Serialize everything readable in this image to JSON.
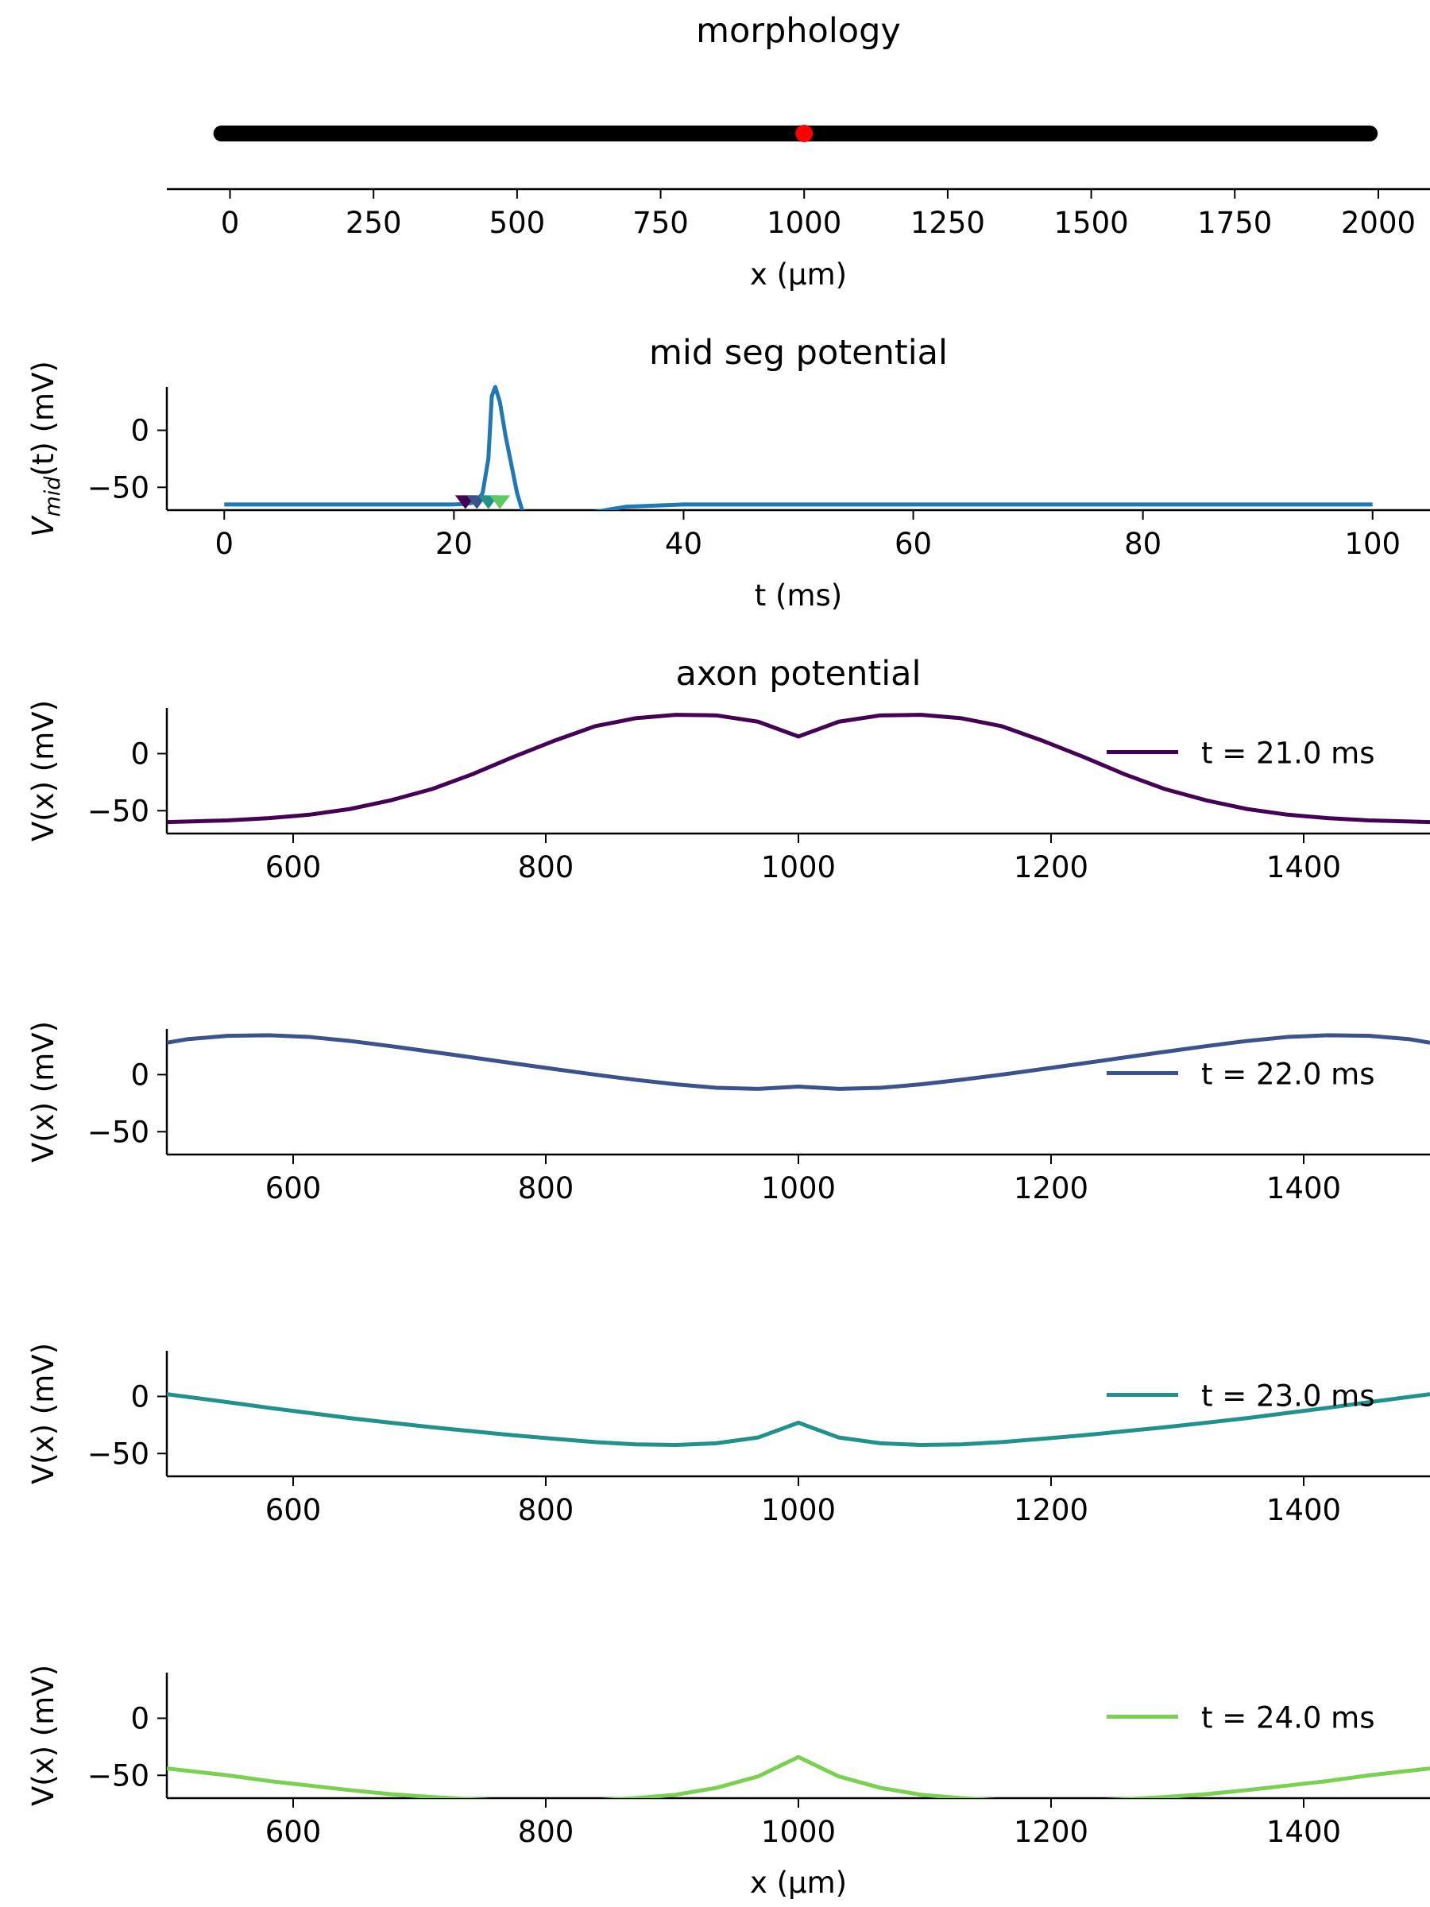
{
  "chart_data": [
    {
      "id": "morph",
      "type": "line",
      "title": "morphology",
      "xlabel": "x (μm)",
      "ylabel": "",
      "xlim": [
        -110,
        2090
      ],
      "xticks": [
        0,
        250,
        500,
        750,
        1000,
        1250,
        1500,
        1750,
        2000
      ],
      "segment": {
        "x_start": -15,
        "x_end": 1985,
        "color": "#000000"
      },
      "marker": {
        "x": 1000,
        "color": "#ff0000"
      }
    },
    {
      "id": "mid",
      "type": "line",
      "title": "mid seg potential",
      "xlabel": "t (ms)",
      "ylabel_main": "V",
      "ylabel_sub": "mid",
      "ylabel_rest": "(t) (mV)",
      "xlim": [
        -5,
        105
      ],
      "ylim": [
        -70,
        38
      ],
      "xticks": [
        0,
        20,
        40,
        60,
        80,
        100
      ],
      "yticks": [
        0,
        -50
      ],
      "series": [
        {
          "color": "#1f77b4",
          "x": [
            0,
            5,
            10,
            15,
            20,
            21,
            22,
            22.5,
            23,
            23.3,
            23.6,
            24,
            24.5,
            25,
            25.5,
            26,
            30,
            32,
            35,
            40,
            50,
            60,
            70,
            80,
            90,
            100
          ],
          "y": [
            -65,
            -65,
            -65,
            -65,
            -65,
            -64.5,
            -63,
            -55,
            -25,
            30,
            38,
            25,
            -5,
            -30,
            -55,
            -72,
            -74,
            -72,
            -67,
            -65,
            -65,
            -65,
            -65,
            -65,
            -65,
            -65
          ]
        }
      ],
      "markers": [
        {
          "t": 21.0,
          "color": "#440154"
        },
        {
          "t": 22.0,
          "color": "#3b528b"
        },
        {
          "t": 23.0,
          "color": "#21918c"
        },
        {
          "t": 24.0,
          "color": "#5ec962"
        }
      ]
    },
    {
      "id": "ax1",
      "type": "line",
      "title": "axon potential",
      "xlabel": "",
      "ylabel": "V(x) (mV)",
      "xlim": [
        500,
        1500
      ],
      "ylim": [
        -70,
        40
      ],
      "xticks": [
        600,
        800,
        1000,
        1200,
        1400
      ],
      "yticks": [
        0,
        -50
      ],
      "series": [
        {
          "name": "t = 21.0 ms",
          "color": "#440154",
          "x": [
            500,
            548,
            581,
            613,
            645,
            677,
            710,
            742,
            774,
            806,
            839,
            871,
            903,
            935,
            968,
            1000,
            1032,
            1065,
            1097,
            1129,
            1161,
            1194,
            1226,
            1258,
            1290,
            1323,
            1355,
            1387,
            1419,
            1452,
            1500
          ],
          "y": [
            -60,
            -58.5,
            -56.5,
            -53.5,
            -48.5,
            -41,
            -31,
            -18,
            -3,
            11,
            24,
            31,
            34,
            33.5,
            28,
            15,
            28,
            33.5,
            34,
            31,
            24,
            11,
            -3,
            -18,
            -31,
            -41,
            -48.5,
            -53.5,
            -56.5,
            -58.5,
            -60
          ]
        }
      ]
    },
    {
      "id": "ax2",
      "type": "line",
      "title": "",
      "xlabel": "",
      "ylabel": "V(x) (mV)",
      "xlim": [
        500,
        1500
      ],
      "ylim": [
        -70,
        40
      ],
      "xticks": [
        600,
        800,
        1000,
        1200,
        1400
      ],
      "yticks": [
        0,
        -50
      ],
      "series": [
        {
          "name": "t = 22.0 ms",
          "color": "#3b528b",
          "x": [
            500,
            516,
            548,
            581,
            613,
            645,
            677,
            710,
            742,
            774,
            806,
            839,
            871,
            903,
            935,
            968,
            1000,
            1032,
            1065,
            1097,
            1129,
            1161,
            1194,
            1226,
            1258,
            1290,
            1323,
            1355,
            1387,
            1419,
            1452,
            1484,
            1500
          ],
          "y": [
            28,
            31,
            34,
            34.5,
            33,
            29.5,
            25,
            20,
            15,
            10,
            5,
            0,
            -4.5,
            -8.5,
            -11.5,
            -12.5,
            -10.5,
            -12.5,
            -11.5,
            -8.5,
            -4.5,
            0,
            5,
            10,
            15,
            20,
            25,
            29.5,
            33,
            34.5,
            34,
            31,
            28
          ]
        }
      ]
    },
    {
      "id": "ax3",
      "type": "line",
      "title": "",
      "xlabel": "",
      "ylabel": "V(x) (mV)",
      "xlim": [
        500,
        1500
      ],
      "ylim": [
        -70,
        40
      ],
      "xticks": [
        600,
        800,
        1000,
        1200,
        1400
      ],
      "yticks": [
        0,
        -50
      ],
      "series": [
        {
          "name": "t = 23.0 ms",
          "color": "#21918c",
          "x": [
            500,
            548,
            581,
            613,
            645,
            677,
            710,
            742,
            774,
            806,
            839,
            871,
            903,
            935,
            968,
            1000,
            1032,
            1065,
            1097,
            1129,
            1161,
            1194,
            1226,
            1258,
            1290,
            1323,
            1355,
            1387,
            1419,
            1452,
            1500
          ],
          "y": [
            2,
            -5,
            -10,
            -14.5,
            -19,
            -23,
            -27,
            -30.5,
            -34,
            -37,
            -40,
            -42,
            -42.5,
            -41,
            -36,
            -23,
            -36,
            -41,
            -42.5,
            -42,
            -40,
            -37,
            -34,
            -30.5,
            -27,
            -23,
            -19,
            -14.5,
            -10,
            -5,
            2
          ]
        }
      ]
    },
    {
      "id": "ax4",
      "type": "line",
      "title": "",
      "xlabel": "x (μm)",
      "ylabel": "V(x) (mV)",
      "xlim": [
        500,
        1500
      ],
      "ylim": [
        -70,
        40
      ],
      "xticks": [
        600,
        800,
        1000,
        1200,
        1400
      ],
      "yticks": [
        0,
        -50
      ],
      "series": [
        {
          "name": "t = 24.0 ms",
          "color": "#7ad151",
          "x": [
            500,
            548,
            581,
            613,
            645,
            677,
            710,
            742,
            774,
            806,
            839,
            871,
            903,
            935,
            968,
            1000,
            1032,
            1065,
            1097,
            1129,
            1161,
            1194,
            1226,
            1258,
            1290,
            1323,
            1355,
            1387,
            1419,
            1452,
            1500
          ],
          "y": [
            -44,
            -50,
            -55,
            -59,
            -63,
            -66.5,
            -69,
            -71,
            -72.5,
            -73,
            -72,
            -70,
            -67,
            -61,
            -51,
            -34,
            -51,
            -61,
            -67,
            -70,
            -72,
            -73,
            -72.5,
            -71,
            -69,
            -66.5,
            -63,
            -59,
            -55,
            -50,
            -44
          ]
        }
      ]
    }
  ]
}
